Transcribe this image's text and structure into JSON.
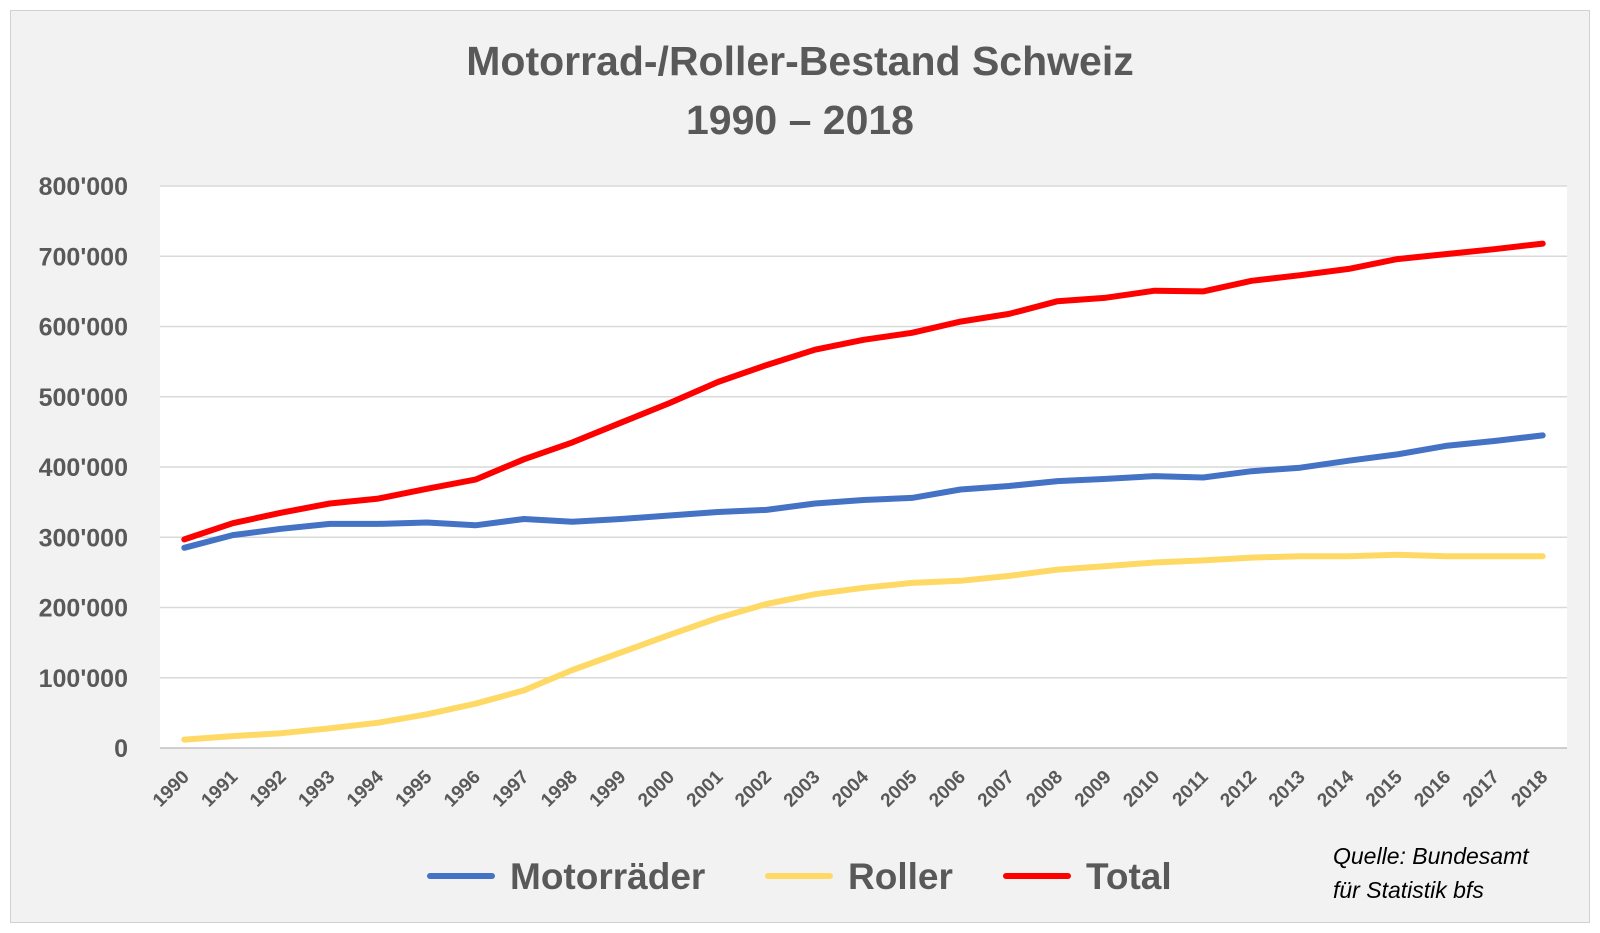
{
  "chart_data": {
    "type": "line",
    "title_lines": [
      "Motorrad-/Roller-Bestand Schweiz",
      "1990 – 2018"
    ],
    "xlabel": "",
    "ylabel": "",
    "ylim": [
      0,
      800000
    ],
    "y_ticks": [
      "0",
      "100'000",
      "200'000",
      "300'000",
      "400'000",
      "500'000",
      "600'000",
      "700'000",
      "800'000"
    ],
    "grid": true,
    "legend_position": "bottom",
    "categories": [
      "1990",
      "1991",
      "1992",
      "1993",
      "1994",
      "1995",
      "1996",
      "1997",
      "1998",
      "1999",
      "2000",
      "2001",
      "2002",
      "2003",
      "2004",
      "2005",
      "2006",
      "2007",
      "2008",
      "2009",
      "2010",
      "2011",
      "2012",
      "2013",
      "2014",
      "2015",
      "2016",
      "2017",
      "2018"
    ],
    "series": [
      {
        "name": "Motorräder",
        "color": "#4472c4",
        "values": [
          285000,
          303000,
          312000,
          319000,
          319000,
          321000,
          317000,
          326000,
          322000,
          326000,
          331000,
          336000,
          339000,
          348000,
          353000,
          356000,
          368000,
          373000,
          380000,
          383000,
          387000,
          385000,
          394000,
          399000,
          409000,
          418000,
          430000,
          437000,
          445000
        ]
      },
      {
        "name": "Roller",
        "color": "#ffd966",
        "values": [
          12000,
          17000,
          21000,
          28000,
          36000,
          48000,
          63000,
          82000,
          111000,
          136000,
          161000,
          185000,
          205000,
          219000,
          228000,
          235000,
          238000,
          245000,
          254000,
          259000,
          264000,
          267000,
          271000,
          273000,
          273000,
          275000,
          273000,
          273000,
          273000
        ]
      },
      {
        "name": "Total",
        "color": "#ff0000",
        "values": [
          297000,
          320000,
          335000,
          348000,
          355000,
          369000,
          382000,
          411000,
          435000,
          463000,
          491000,
          521000,
          545000,
          567000,
          581000,
          591000,
          607000,
          618000,
          636000,
          641000,
          651000,
          650000,
          665000,
          673000,
          682000,
          696000,
          703000,
          710000,
          718000
        ]
      }
    ],
    "source_lines": [
      "Quelle: Bundesamt",
      "für Statistik bfs"
    ]
  }
}
